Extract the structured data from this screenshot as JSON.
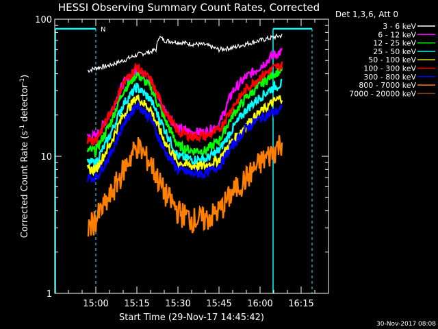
{
  "chart_data": {
    "type": "line",
    "title": "HESSI Observing Summary Count Rates, Corrected",
    "xlabel": "Start Time (29-Nov-17 14:45:42)",
    "ylabel_main": "Corrected Count Rate (s",
    "ylabel_sup1": "-1",
    "ylabel_mid": " detector",
    "ylabel_sup2": "-1",
    "ylabel_end": ")",
    "yscale": "log",
    "ylim": [
      1,
      100
    ],
    "xlim_minutes_after_1445": [
      0,
      100
    ],
    "x_ticks": [
      "15:00",
      "15:15",
      "15:30",
      "15:45",
      "16:00",
      "16:15"
    ],
    "y_ticks": [
      "1",
      "10",
      "100"
    ],
    "legend_title": "Det 1,3,6, Att 0",
    "legend_placement": "right",
    "timestamp": "30-Nov-2017 08:08",
    "night_marker": "N",
    "data_start": "14:57",
    "data_end": "16:08",
    "series": [
      {
        "name": "3 - 6 keV",
        "color": "#ffffff",
        "x": [
          "14:57",
          "15:00",
          "15:05",
          "15:10",
          "15:15",
          "15:20",
          "15:22",
          "15:23",
          "15:25",
          "15:30",
          "15:35",
          "15:40",
          "15:45",
          "15:50",
          "15:55",
          "16:00",
          "16:05",
          "16:08"
        ],
        "values": [
          42,
          44,
          46,
          50,
          55,
          58,
          60,
          75,
          70,
          68,
          66,
          65,
          60,
          62,
          66,
          70,
          74,
          76
        ]
      },
      {
        "name": "6 - 12 keV",
        "color": "#ff00ff",
        "x": [
          "14:57",
          "15:00",
          "15:05",
          "15:10",
          "15:15",
          "15:20",
          "15:25",
          "15:30",
          "15:35",
          "15:40",
          "15:45",
          "15:50",
          "15:55",
          "16:00",
          "16:05",
          "16:08"
        ],
        "values": [
          14,
          14,
          20,
          34,
          43,
          35,
          22,
          16,
          15,
          15,
          17,
          30,
          38,
          45,
          55,
          58
        ]
      },
      {
        "name": "12 - 25 keV",
        "color": "#00ff00",
        "x": [
          "14:57",
          "15:00",
          "15:05",
          "15:10",
          "15:15",
          "15:20",
          "15:25",
          "15:30",
          "15:35",
          "15:40",
          "15:45",
          "15:50",
          "15:55",
          "16:00",
          "16:05",
          "16:08"
        ],
        "values": [
          11,
          11,
          17,
          30,
          40,
          32,
          19,
          12,
          11,
          11,
          13,
          20,
          27,
          33,
          40,
          43
        ]
      },
      {
        "name": "25 - 50 keV",
        "color": "#00ffff",
        "x": [
          "14:57",
          "15:00",
          "15:05",
          "15:10",
          "15:15",
          "15:20",
          "15:25",
          "15:30",
          "15:35",
          "15:40",
          "15:45",
          "15:50",
          "15:55",
          "16:00",
          "16:05",
          "16:08"
        ],
        "values": [
          9,
          9,
          14,
          24,
          32,
          26,
          16,
          10,
          9.5,
          9.5,
          11,
          16,
          22,
          27,
          32,
          34
        ]
      },
      {
        "name": "50 - 100 keV",
        "color": "#ffff00",
        "x": [
          "14:57",
          "15:00",
          "15:05",
          "15:10",
          "15:15",
          "15:20",
          "15:25",
          "15:30",
          "15:35",
          "15:40",
          "15:45",
          "15:50",
          "15:55",
          "16:00",
          "16:05",
          "16:08"
        ],
        "values": [
          8,
          8,
          12,
          20,
          27,
          22,
          13,
          9,
          8.5,
          8.5,
          9.5,
          13,
          17,
          21,
          25,
          27
        ]
      },
      {
        "name": "100 - 300 keV",
        "color": "#ff0000",
        "x": [
          "14:57",
          "15:00",
          "15:05",
          "15:10",
          "15:15",
          "15:20",
          "15:25",
          "15:30",
          "15:35",
          "15:40",
          "15:45",
          "15:50",
          "15:55",
          "16:00",
          "16:05",
          "16:08"
        ],
        "values": [
          13,
          13,
          20,
          34,
          45,
          36,
          22,
          15,
          14,
          14,
          15.5,
          23,
          31,
          38,
          44,
          46
        ]
      },
      {
        "name": "300 - 800 keV",
        "color": "#0000ff",
        "x": [
          "14:57",
          "15:00",
          "15:05",
          "15:10",
          "15:15",
          "15:20",
          "15:25",
          "15:30",
          "15:35",
          "15:40",
          "15:45",
          "15:50",
          "15:55",
          "16:00",
          "16:05",
          "16:08"
        ],
        "values": [
          7,
          7,
          10,
          17,
          24,
          19,
          11,
          8,
          7.5,
          7.5,
          8.5,
          12,
          16,
          19,
          21,
          22
        ]
      },
      {
        "name": "800 - 7000 keV",
        "color": "#ff7f00",
        "x": [
          "14:57",
          "15:00",
          "15:05",
          "15:10",
          "15:15",
          "15:20",
          "15:25",
          "15:30",
          "15:35",
          "15:40",
          "15:45",
          "15:50",
          "15:55",
          "16:00",
          "16:05",
          "16:08"
        ],
        "values": [
          3,
          3.5,
          5,
          8,
          12,
          9,
          5.5,
          4,
          3.5,
          3.5,
          4,
          5.5,
          7,
          9,
          11,
          13
        ]
      },
      {
        "name": "7000 - 20000 keV",
        "color": "#7f3f00",
        "x": [],
        "values": []
      }
    ]
  }
}
